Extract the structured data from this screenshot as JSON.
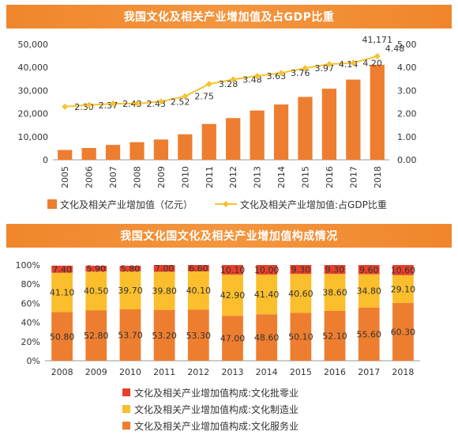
{
  "chart_data": [
    {
      "type": "bar+line",
      "title": "我国文化及相关产业增加值及占GDP比重",
      "categories": [
        "2005",
        "2006",
        "2007",
        "2008",
        "2009",
        "2010",
        "2011",
        "2012",
        "2013",
        "2014",
        "2015",
        "2016",
        "2017",
        "2018"
      ],
      "series": [
        {
          "name": "文化及相关产业增加值（亿元）",
          "type": "bar",
          "axis": "left",
          "values": [
            4253,
            5123,
            6455,
            7630,
            8786,
            11052,
            15516,
            18071,
            21351,
            23940,
            27235,
            30785,
            34722,
            41171
          ],
          "labels": [
            "",
            "",
            "",
            "",
            "",
            "",
            "",
            "",
            "",
            "",
            "",
            "",
            "",
            "41,171"
          ]
        },
        {
          "name": "文化及相关产业增加值:占GDP比重",
          "type": "line",
          "axis": "right",
          "values": [
            2.3,
            2.37,
            2.43,
            2.43,
            2.52,
            2.75,
            3.28,
            3.48,
            3.63,
            3.76,
            3.97,
            4.14,
            4.2,
            4.48
          ],
          "labels": [
            "2.30",
            "2.37",
            "2.43",
            "2.43",
            "2.52",
            "2.75",
            "3.28",
            "3.48",
            "3.63",
            "3.76",
            "3.97",
            "4.14",
            "4.20",
            "4.48"
          ]
        }
      ],
      "yleft": {
        "ylim": [
          0,
          50000
        ],
        "ticks": [
          "0",
          "10,000",
          "20,000",
          "30,000",
          "40,000",
          "50,000"
        ]
      },
      "yright": {
        "ylim": [
          0,
          5
        ],
        "ticks": [
          "0.00",
          "1.00",
          "2.00",
          "3.00",
          "4.00",
          "5.00"
        ]
      },
      "legend": "bottom",
      "colors": {
        "bar": "#ee7e2f",
        "line": "#f7c230"
      }
    },
    {
      "type": "stacked-bar",
      "title": "我国文化国文化及相关产业增加值构成情况",
      "categories": [
        "2008",
        "2009",
        "2010",
        "2011",
        "2012",
        "2013",
        "2014",
        "2015",
        "2016",
        "2017",
        "2018"
      ],
      "series": [
        {
          "name": "文化及相关产业增加值构成:文化服务业",
          "color": "#ee7e2f",
          "values": [
            50.8,
            52.8,
            53.7,
            53.2,
            53.3,
            47.0,
            48.6,
            50.1,
            52.1,
            55.6,
            60.3
          ],
          "labels": [
            "50.80",
            "52.80",
            "53.70",
            "53.20",
            "53.30",
            "47.00",
            "48.60",
            "50.10",
            "52.10",
            "55.60",
            "60.30"
          ]
        },
        {
          "name": "文化及相关产业增加值构成:文化制造业",
          "color": "#fbbe2c",
          "values": [
            41.1,
            40.5,
            39.7,
            39.8,
            40.1,
            42.9,
            41.4,
            40.6,
            38.6,
            34.8,
            29.1
          ],
          "labels": [
            "41.10",
            "40.50",
            "39.70",
            "39.80",
            "40.10",
            "42.90",
            "41.40",
            "40.60",
            "38.60",
            "34.80",
            "29.10"
          ]
        },
        {
          "name": "文化及相关产业增加值构成:文化批零业",
          "color": "#e8402b",
          "values": [
            7.4,
            5.9,
            5.8,
            7.0,
            6.6,
            10.1,
            10.0,
            9.3,
            9.3,
            9.6,
            10.6
          ],
          "labels": [
            "7.40",
            "5.90",
            "5.80",
            "7.00",
            "6.60",
            "10.10",
            "10.00",
            "9.30",
            "9.30",
            "9.60",
            "10.60"
          ]
        }
      ],
      "ylim": [
        0,
        100
      ],
      "ticks": [
        "0%",
        "20%",
        "40%",
        "60%",
        "80%",
        "100%"
      ],
      "legend": "bottom"
    }
  ]
}
